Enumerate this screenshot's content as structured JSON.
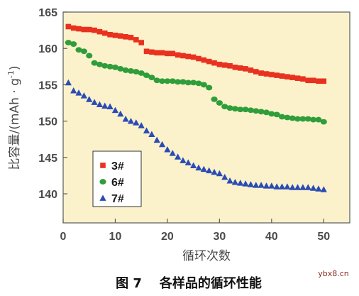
{
  "caption": "图 7    各样品的循环性能",
  "watermark": "ybx8.cn",
  "chart_data": {
    "type": "scatter",
    "xlabel": "循环次数",
    "ylabel_main": "比容量/(mAh · g",
    "ylabel_sup": "-1",
    "ylabel_close": ")",
    "xlim": [
      0,
      55
    ],
    "ylim": [
      136,
      165
    ],
    "xticks": [
      0,
      10,
      20,
      30,
      40,
      50
    ],
    "yticks": [
      140,
      145,
      150,
      155,
      160,
      165
    ],
    "legend_position": "lower-left",
    "plot_background": "#fbf2cc",
    "series": [
      {
        "name": "3#",
        "marker": "square",
        "color": "#e8321f",
        "x": [
          1,
          2,
          3,
          4,
          5,
          6,
          7,
          8,
          9,
          10,
          11,
          12,
          13,
          14,
          15,
          16,
          17,
          18,
          19,
          20,
          21,
          22,
          23,
          24,
          25,
          26,
          27,
          28,
          29,
          30,
          31,
          32,
          33,
          34,
          35,
          36,
          37,
          38,
          39,
          40,
          41,
          42,
          43,
          44,
          45,
          46,
          47,
          48,
          49,
          50
        ],
        "y": [
          163.0,
          162.8,
          162.7,
          162.6,
          162.6,
          162.5,
          162.3,
          162.1,
          161.9,
          161.8,
          161.7,
          161.6,
          161.5,
          161.2,
          160.8,
          159.6,
          159.5,
          159.4,
          159.4,
          159.3,
          159.3,
          159.1,
          159.0,
          158.9,
          158.8,
          158.6,
          158.4,
          158.2,
          158.0,
          157.8,
          157.7,
          157.6,
          157.4,
          157.3,
          157.2,
          157.0,
          156.8,
          156.6,
          156.5,
          156.4,
          156.3,
          156.2,
          156.1,
          156.0,
          155.9,
          155.8,
          155.6,
          155.6,
          155.5,
          155.5
        ]
      },
      {
        "name": "6#",
        "marker": "circle",
        "color": "#2f9e3a",
        "x": [
          1,
          2,
          3,
          4,
          5,
          6,
          7,
          8,
          9,
          10,
          11,
          12,
          13,
          14,
          15,
          16,
          17,
          18,
          19,
          20,
          21,
          22,
          23,
          24,
          25,
          26,
          27,
          28,
          29,
          30,
          31,
          32,
          33,
          34,
          35,
          36,
          37,
          38,
          39,
          40,
          41,
          42,
          43,
          44,
          45,
          46,
          47,
          48,
          49,
          50
        ],
        "y": [
          160.8,
          160.6,
          159.8,
          159.6,
          159.0,
          158.0,
          157.8,
          157.6,
          157.5,
          157.4,
          157.2,
          157.0,
          156.9,
          156.8,
          156.6,
          156.3,
          156.0,
          155.6,
          155.5,
          155.5,
          155.5,
          155.4,
          155.4,
          155.3,
          155.3,
          155.2,
          155.0,
          154.6,
          153.0,
          152.5,
          152.0,
          151.8,
          151.7,
          151.6,
          151.6,
          151.5,
          151.4,
          151.3,
          151.2,
          151.0,
          150.9,
          150.6,
          150.5,
          150.4,
          150.3,
          150.3,
          150.3,
          150.2,
          150.2,
          149.9
        ]
      },
      {
        "name": "7#",
        "marker": "triangle",
        "color": "#2b4bb5",
        "x": [
          1,
          2,
          3,
          4,
          5,
          6,
          7,
          8,
          9,
          10,
          11,
          12,
          13,
          14,
          15,
          16,
          17,
          18,
          19,
          20,
          21,
          22,
          23,
          24,
          25,
          26,
          27,
          28,
          29,
          30,
          31,
          32,
          33,
          34,
          35,
          36,
          37,
          38,
          39,
          40,
          41,
          42,
          43,
          44,
          45,
          46,
          47,
          48,
          49,
          50
        ],
        "y": [
          155.3,
          154.2,
          153.9,
          153.5,
          153.0,
          152.6,
          152.3,
          152.1,
          152.0,
          151.5,
          151.0,
          150.3,
          150.0,
          149.8,
          149.4,
          148.7,
          148.2,
          147.4,
          146.8,
          146.1,
          145.6,
          145.1,
          144.6,
          144.3,
          143.9,
          143.6,
          143.4,
          143.2,
          143.0,
          142.8,
          142.3,
          141.8,
          141.6,
          141.5,
          141.4,
          141.3,
          141.2,
          141.2,
          141.1,
          141.1,
          141.0,
          141.0,
          141.0,
          140.9,
          140.9,
          140.9,
          140.9,
          140.8,
          140.7,
          140.6
        ]
      }
    ]
  }
}
